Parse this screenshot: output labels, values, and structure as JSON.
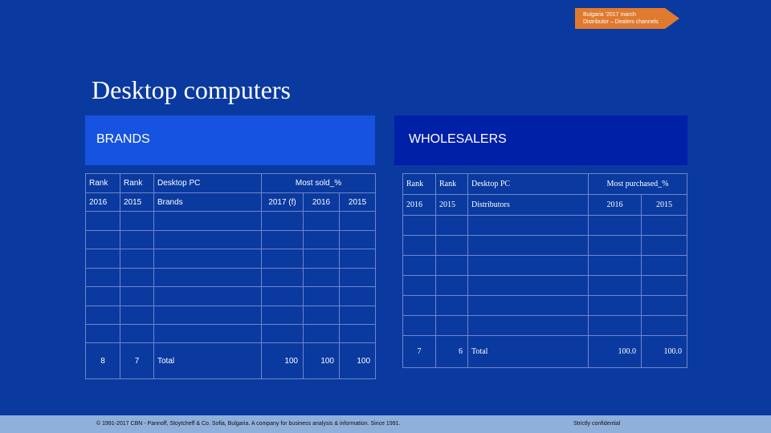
{
  "tag": {
    "line1": "Bulgaria '2017 march",
    "line2": "Distributor – Dealers channels"
  },
  "title": "Desktop computers",
  "brands": {
    "header": "BRANDS",
    "row1": [
      "Rank",
      "Rank",
      "Desktop PC",
      "Most sold_%"
    ],
    "row2": [
      "2016",
      "2015",
      "Brands",
      "2017 (f)",
      "2016",
      "2015"
    ],
    "total": [
      "8",
      "7",
      "Total",
      "100",
      "100",
      "100"
    ]
  },
  "wholesalers": {
    "header": "WHOLESALERS",
    "row1": [
      "Rank",
      "Rank",
      "Desktop PC",
      "Most purchased_%"
    ],
    "row2": [
      "2016",
      "2015",
      "Distributors",
      "2016",
      "2015"
    ],
    "total": [
      "7",
      "6",
      "Total",
      "100.0",
      "100.0"
    ]
  },
  "footer": {
    "left": "© 1991-2017 CBN - Pannoff, Stoytcheff & Co. Sofia, Bulgaria. A company for business analysis & information. Since 1991.",
    "right": "Strictly confidential"
  },
  "colors": {
    "background": "#0a3aa0",
    "tag": "#e07a2e",
    "brands_header": "#1653e0",
    "wholesalers_header": "#0020a8",
    "footer": "#8fb0da"
  }
}
